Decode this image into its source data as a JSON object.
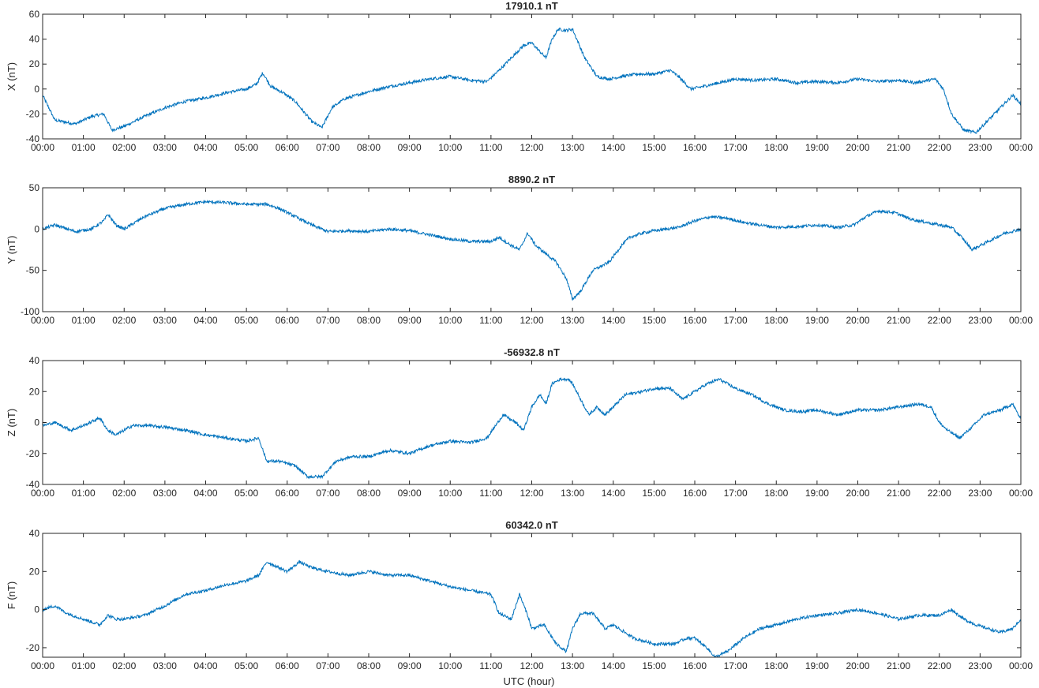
{
  "figure": {
    "xlabel": "UTC (hour)",
    "x_tick_labels": [
      "00:00",
      "01:00",
      "02:00",
      "03:00",
      "04:00",
      "05:00",
      "06:00",
      "07:00",
      "08:00",
      "09:00",
      "10:00",
      "11:00",
      "12:00",
      "13:00",
      "14:00",
      "15:00",
      "16:00",
      "17:00",
      "18:00",
      "19:00",
      "20:00",
      "21:00",
      "22:00",
      "23:00",
      "00:00"
    ],
    "line_color": "#0072BD"
  },
  "chart_data": [
    {
      "type": "line",
      "title": "17910.1 nT",
      "ylabel": "X (nT)",
      "ylim": [
        -40,
        60
      ],
      "yticks": [
        -40,
        -20,
        0,
        20,
        40,
        60
      ],
      "x_unit": "hour",
      "xlim": [
        0,
        24
      ],
      "x": [
        0,
        0.3,
        0.8,
        1.2,
        1.5,
        1.7,
        2.0,
        2.5,
        3.0,
        3.5,
        4.0,
        4.5,
        5.0,
        5.25,
        5.4,
        5.6,
        5.9,
        6.2,
        6.4,
        6.6,
        6.85,
        7.1,
        7.4,
        7.7,
        8.0,
        8.5,
        9.0,
        9.5,
        10.0,
        10.5,
        10.9,
        11.2,
        11.5,
        11.8,
        12.0,
        12.2,
        12.35,
        12.5,
        12.65,
        12.85,
        13.0,
        13.3,
        13.6,
        13.9,
        14.2,
        14.6,
        15.0,
        15.4,
        15.6,
        15.9,
        16.2,
        16.6,
        17.0,
        17.5,
        18.0,
        18.5,
        19.0,
        19.5,
        20.0,
        20.5,
        21.0,
        21.4,
        21.9,
        22.1,
        22.3,
        22.6,
        22.9,
        23.2,
        23.5,
        23.8,
        24.0
      ],
      "y": [
        -5,
        -25,
        -28,
        -22,
        -20,
        -33,
        -30,
        -22,
        -15,
        -10,
        -7,
        -3,
        0,
        4,
        13,
        2,
        -3,
        -10,
        -18,
        -26,
        -31,
        -15,
        -8,
        -5,
        -2,
        2,
        5,
        8,
        10,
        7,
        6,
        15,
        25,
        35,
        37,
        30,
        25,
        40,
        48,
        47,
        48,
        25,
        10,
        8,
        10,
        12,
        12,
        15,
        10,
        0,
        2,
        5,
        8,
        7,
        8,
        5,
        6,
        5,
        8,
        6,
        7,
        5,
        8,
        0,
        -20,
        -33,
        -35,
        -25,
        -15,
        -5,
        -12
      ]
    },
    {
      "type": "line",
      "title": "8890.2 nT",
      "ylabel": "Y (nT)",
      "ylim": [
        -100,
        50
      ],
      "yticks": [
        -100,
        -50,
        0,
        50
      ],
      "x_unit": "hour",
      "xlim": [
        0,
        24
      ],
      "x": [
        0,
        0.3,
        0.8,
        1.2,
        1.5,
        1.6,
        1.8,
        2.0,
        2.5,
        3.0,
        3.5,
        4.0,
        4.5,
        5.0,
        5.5,
        5.8,
        6.2,
        6.6,
        7.0,
        7.5,
        8.0,
        8.5,
        9.0,
        9.5,
        10.0,
        10.5,
        11.0,
        11.2,
        11.5,
        11.7,
        11.9,
        12.1,
        12.3,
        12.6,
        12.85,
        13.0,
        13.2,
        13.5,
        13.9,
        14.2,
        14.4,
        14.7,
        15.0,
        15.3,
        15.6,
        16.0,
        16.4,
        16.8,
        17.2,
        17.6,
        18.0,
        18.5,
        19.0,
        19.5,
        19.9,
        20.2,
        20.5,
        20.9,
        21.3,
        21.7,
        22.0,
        22.3,
        22.55,
        22.8,
        23.2,
        23.6,
        24.0
      ],
      "y": [
        0,
        5,
        -3,
        0,
        10,
        18,
        5,
        0,
        15,
        25,
        30,
        33,
        32,
        30,
        30,
        25,
        15,
        5,
        -3,
        -2,
        -3,
        0,
        -2,
        -7,
        -12,
        -15,
        -15,
        -10,
        -20,
        -25,
        -5,
        -20,
        -28,
        -40,
        -60,
        -85,
        -75,
        -50,
        -40,
        -20,
        -10,
        -5,
        -2,
        0,
        2,
        10,
        15,
        13,
        8,
        5,
        2,
        3,
        5,
        2,
        5,
        15,
        22,
        20,
        12,
        8,
        5,
        2,
        -10,
        -25,
        -15,
        -5,
        0
      ]
    },
    {
      "type": "line",
      "title": "-56932.8 nT",
      "ylabel": "Z (nT)",
      "ylim": [
        -40,
        40
      ],
      "yticks": [
        -40,
        -20,
        0,
        20,
        40
      ],
      "x_unit": "hour",
      "xlim": [
        0,
        24
      ],
      "x": [
        0,
        0.3,
        0.7,
        1.0,
        1.4,
        1.6,
        1.8,
        2.2,
        2.6,
        3.0,
        3.5,
        4.0,
        4.5,
        5.0,
        5.3,
        5.5,
        5.8,
        6.2,
        6.5,
        6.85,
        7.2,
        7.6,
        8.0,
        8.5,
        9.0,
        9.5,
        10.0,
        10.5,
        10.9,
        11.3,
        11.6,
        11.8,
        12.0,
        12.2,
        12.35,
        12.5,
        12.7,
        12.9,
        13.0,
        13.2,
        13.4,
        13.6,
        13.8,
        14.0,
        14.3,
        14.7,
        15.0,
        15.4,
        15.7,
        16.0,
        16.3,
        16.6,
        17.0,
        17.4,
        17.8,
        18.2,
        18.6,
        19.0,
        19.5,
        20.0,
        20.5,
        21.0,
        21.5,
        21.8,
        22.0,
        22.2,
        22.5,
        22.8,
        23.1,
        23.5,
        23.8,
        24.0
      ],
      "y": [
        -2,
        0,
        -5,
        -2,
        3,
        -5,
        -8,
        -2,
        -2,
        -3,
        -5,
        -8,
        -10,
        -12,
        -10,
        -25,
        -25,
        -28,
        -35,
        -35,
        -25,
        -22,
        -22,
        -18,
        -20,
        -15,
        -12,
        -13,
        -10,
        5,
        0,
        -5,
        10,
        18,
        12,
        25,
        28,
        28,
        25,
        15,
        5,
        10,
        5,
        10,
        18,
        20,
        22,
        22,
        15,
        20,
        25,
        28,
        22,
        18,
        12,
        8,
        7,
        8,
        5,
        8,
        8,
        10,
        12,
        10,
        0,
        -5,
        -10,
        -3,
        5,
        8,
        12,
        2
      ]
    },
    {
      "type": "line",
      "title": "60342.0 nT",
      "ylabel": "F (nT)",
      "ylim": [
        -25,
        40
      ],
      "yticks": [
        -20,
        0,
        20,
        40
      ],
      "xlabel": "UTC (hour)",
      "x_unit": "hour",
      "xlim": [
        0,
        24
      ],
      "x": [
        0,
        0.3,
        0.6,
        1.0,
        1.4,
        1.6,
        1.8,
        2.0,
        2.5,
        3.0,
        3.5,
        4.0,
        4.5,
        5.0,
        5.3,
        5.5,
        5.8,
        6.0,
        6.3,
        6.6,
        7.0,
        7.5,
        8.0,
        8.5,
        9.0,
        9.5,
        10.0,
        10.5,
        11.0,
        11.2,
        11.5,
        11.7,
        11.9,
        12.0,
        12.3,
        12.6,
        12.85,
        13.0,
        13.2,
        13.5,
        13.8,
        14.0,
        14.5,
        15.0,
        15.5,
        15.8,
        16.0,
        16.3,
        16.5,
        16.8,
        17.2,
        17.6,
        18.0,
        18.5,
        19.0,
        19.5,
        20.0,
        20.5,
        21.0,
        21.5,
        22.0,
        22.3,
        22.6,
        22.9,
        23.2,
        23.5,
        23.8,
        24.0
      ],
      "y": [
        0,
        2,
        -2,
        -5,
        -8,
        -3,
        -5,
        -5,
        -3,
        2,
        8,
        10,
        13,
        15,
        18,
        25,
        22,
        20,
        25,
        22,
        20,
        18,
        20,
        18,
        18,
        15,
        12,
        10,
        8,
        -2,
        -5,
        8,
        -3,
        -10,
        -8,
        -18,
        -22,
        -10,
        -2,
        -2,
        -10,
        -8,
        -15,
        -18,
        -18,
        -15,
        -15,
        -20,
        -25,
        -22,
        -15,
        -10,
        -8,
        -5,
        -3,
        -2,
        0,
        -2,
        -5,
        -3,
        -3,
        0,
        -5,
        -8,
        -10,
        -12,
        -10,
        -5
      ]
    }
  ]
}
